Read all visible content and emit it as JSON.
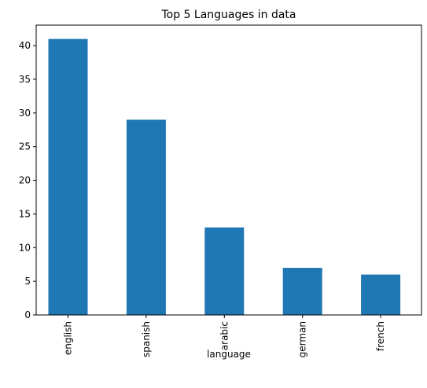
{
  "chart_data": {
    "type": "bar",
    "title": "Top 5 Languages in data",
    "x_label": "language",
    "categories": [
      "english",
      "spanish",
      "arabic",
      "german",
      "french"
    ],
    "values": [
      41,
      29,
      13,
      7,
      6
    ],
    "color": "#1f77b4",
    "ylim": [
      0,
      43.05
    ],
    "yticks": [
      0,
      5,
      10,
      15,
      20,
      25,
      30,
      35,
      40
    ],
    "grid": false
  }
}
